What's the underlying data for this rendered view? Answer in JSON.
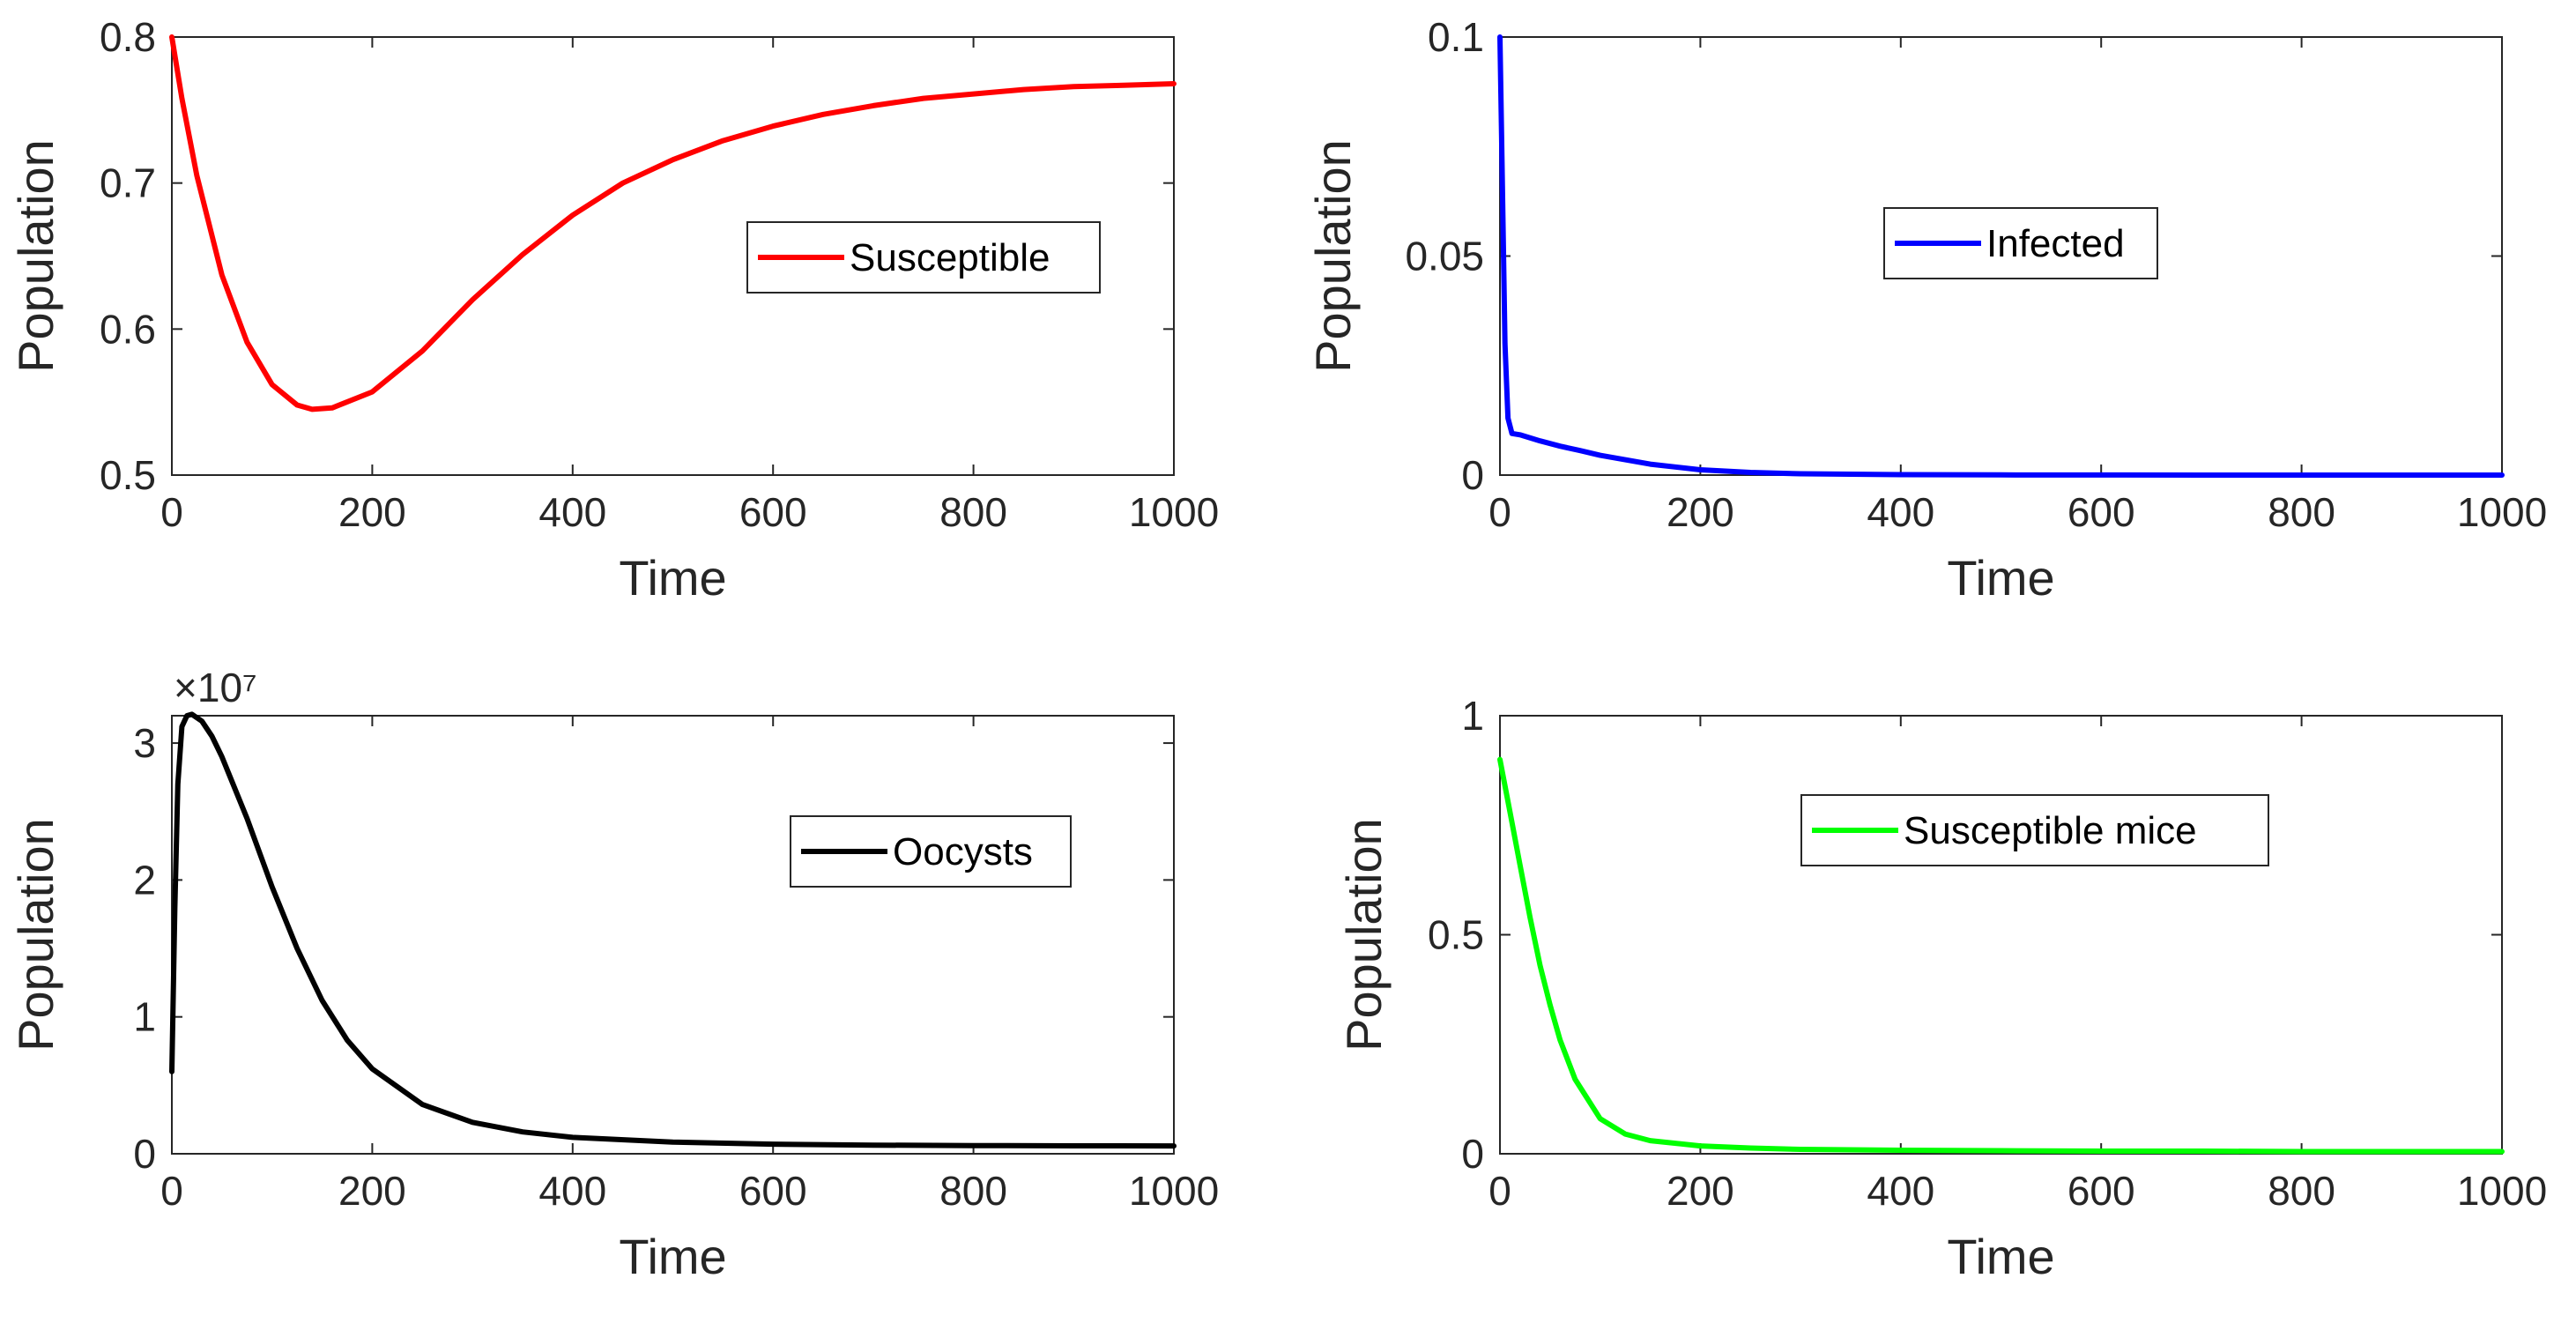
{
  "figure": {
    "description_panels": 4
  },
  "chart_data": [
    {
      "type": "line",
      "id": "susceptible",
      "xlabel": "Time",
      "ylabel": "Population",
      "xlim": [
        0,
        1000
      ],
      "ylim": [
        0.5,
        0.8
      ],
      "xticks": [
        0,
        200,
        400,
        600,
        800,
        1000
      ],
      "xtick_labels": [
        "0",
        "200",
        "400",
        "600",
        "800",
        "1000"
      ],
      "yticks": [
        0.5,
        0.6,
        0.7,
        0.8
      ],
      "ytick_labels": [
        "0.5",
        "0.6",
        "0.7",
        "0.8"
      ],
      "exponent": "",
      "legend": "top-right-inset",
      "series": [
        {
          "name": "Susceptible",
          "color": "#ff0000",
          "x": [
            0,
            10,
            25,
            50,
            75,
            100,
            125,
            140,
            160,
            200,
            250,
            300,
            350,
            400,
            450,
            500,
            550,
            600,
            650,
            700,
            750,
            800,
            850,
            900,
            950,
            1000
          ],
          "y": [
            0.8,
            0.758,
            0.705,
            0.637,
            0.591,
            0.562,
            0.548,
            0.545,
            0.546,
            0.557,
            0.585,
            0.62,
            0.651,
            0.678,
            0.7,
            0.716,
            0.729,
            0.739,
            0.747,
            0.753,
            0.758,
            0.761,
            0.764,
            0.766,
            0.767,
            0.768
          ]
        }
      ]
    },
    {
      "type": "line",
      "id": "infected",
      "xlabel": "Time",
      "ylabel": "Population",
      "xlim": [
        0,
        1000
      ],
      "ylim": [
        0,
        0.1
      ],
      "xticks": [
        0,
        200,
        400,
        600,
        800,
        1000
      ],
      "xtick_labels": [
        "0",
        "200",
        "400",
        "600",
        "800",
        "1000"
      ],
      "yticks": [
        0,
        0.05,
        0.1
      ],
      "ytick_labels": [
        "0",
        "0.05",
        "0.1"
      ],
      "exponent": "",
      "legend": "top-right-inset",
      "series": [
        {
          "name": "Infected",
          "color": "#0000ff",
          "x": [
            0,
            2,
            5,
            8,
            12,
            20,
            40,
            60,
            80,
            100,
            150,
            200,
            250,
            300,
            400,
            500,
            600,
            700,
            800,
            900,
            1000
          ],
          "y": [
            0.1,
            0.072,
            0.03,
            0.013,
            0.0095,
            0.0092,
            0.0078,
            0.0066,
            0.0056,
            0.0045,
            0.0025,
            0.0012,
            0.0006,
            0.0003,
            0.0001,
            4e-05,
            2e-05,
            1e-05,
            0.0,
            0.0,
            0.0
          ]
        }
      ]
    },
    {
      "type": "line",
      "id": "oocysts",
      "xlabel": "Time",
      "ylabel": "Population",
      "xlim": [
        0,
        1000
      ],
      "ylim": [
        0,
        3.2
      ],
      "xticks": [
        0,
        200,
        400,
        600,
        800,
        1000
      ],
      "xtick_labels": [
        "0",
        "200",
        "400",
        "600",
        "800",
        "1000"
      ],
      "yticks": [
        0,
        1,
        2,
        3
      ],
      "ytick_labels": [
        "0",
        "1",
        "2",
        "3"
      ],
      "exponent": "×10⁷",
      "legend": "top-right-inset",
      "series": [
        {
          "name": "Oocysts",
          "color": "#000000",
          "x": [
            0,
            3,
            6,
            10,
            15,
            20,
            30,
            40,
            50,
            75,
            100,
            125,
            150,
            175,
            200,
            250,
            300,
            350,
            400,
            500,
            600,
            700,
            800,
            900,
            1000
          ],
          "y": [
            0.6,
            1.8,
            2.7,
            3.12,
            3.2,
            3.21,
            3.16,
            3.05,
            2.9,
            2.45,
            1.95,
            1.5,
            1.12,
            0.83,
            0.62,
            0.36,
            0.23,
            0.16,
            0.12,
            0.085,
            0.07,
            0.063,
            0.06,
            0.058,
            0.057
          ]
        }
      ]
    },
    {
      "type": "line",
      "id": "susceptible-mice",
      "xlabel": "Time",
      "ylabel": "Population",
      "xlim": [
        0,
        1000
      ],
      "ylim": [
        0,
        1
      ],
      "xticks": [
        0,
        200,
        400,
        600,
        800,
        1000
      ],
      "xtick_labels": [
        "0",
        "200",
        "400",
        "600",
        "800",
        "1000"
      ],
      "yticks": [
        0,
        0.5,
        1
      ],
      "ytick_labels": [
        "0",
        "0.5",
        "1"
      ],
      "exponent": "",
      "legend": "top-right-inset",
      "series": [
        {
          "name": "Susceptible mice",
          "color": "#00ff00",
          "x": [
            0,
            5,
            10,
            20,
            30,
            40,
            50,
            60,
            75,
            100,
            125,
            150,
            200,
            250,
            300,
            400,
            500,
            600,
            700,
            800,
            900,
            1000
          ],
          "y": [
            0.9,
            0.84,
            0.78,
            0.66,
            0.54,
            0.43,
            0.34,
            0.26,
            0.17,
            0.08,
            0.045,
            0.03,
            0.018,
            0.013,
            0.01,
            0.008,
            0.007,
            0.006,
            0.006,
            0.005,
            0.005,
            0.005
          ]
        }
      ]
    }
  ]
}
